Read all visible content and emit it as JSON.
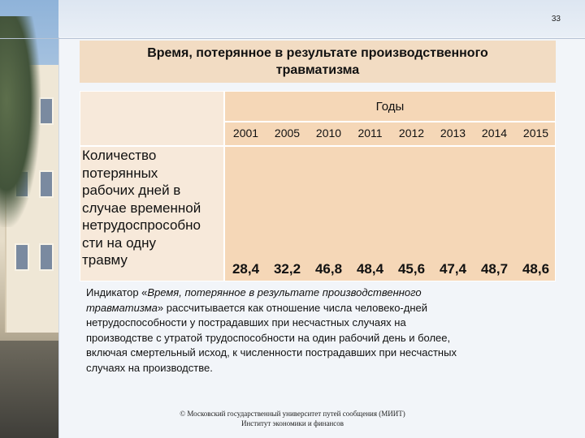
{
  "slide_number": "33",
  "title_lines": [
    "Время, потерянное в результате производственного",
    "травматизма"
  ],
  "table": {
    "group_header": "Годы",
    "years": [
      "2001",
      "2005",
      "2010",
      "2011",
      "2012",
      "2013",
      "2014",
      "2015"
    ],
    "row_label_lines": [
      "Количество",
      "потерянных",
      "рабочих дней в",
      "случае временной",
      "нетрудоспрособно",
      "сти на одну",
      "травму"
    ],
    "values": [
      "28,4",
      "32,2",
      "46,8",
      "48,4",
      "45,6",
      "47,4",
      "48,7",
      "48,6"
    ]
  },
  "description": {
    "line1_prefix": "Индикатор «",
    "line1_italic": "Время, потерянное в результате производственного",
    "line2_italic": "травматизма",
    "line2_rest": "» рассчитывается как отношение числа человеко-дней",
    "lines": [
      "нетрудоспособности у пострадавших при несчастных случаях на",
      "производстве с утратой трудоспособности на один рабочий день и более,",
      "включая смертельный исход, к численности пострадавших при несчастных",
      "случаях на производстве."
    ]
  },
  "footer": {
    "line1": "© Московский государственный университет путей сообщения (МИИТ)",
    "line2": "Институт экономики и финансов"
  }
}
